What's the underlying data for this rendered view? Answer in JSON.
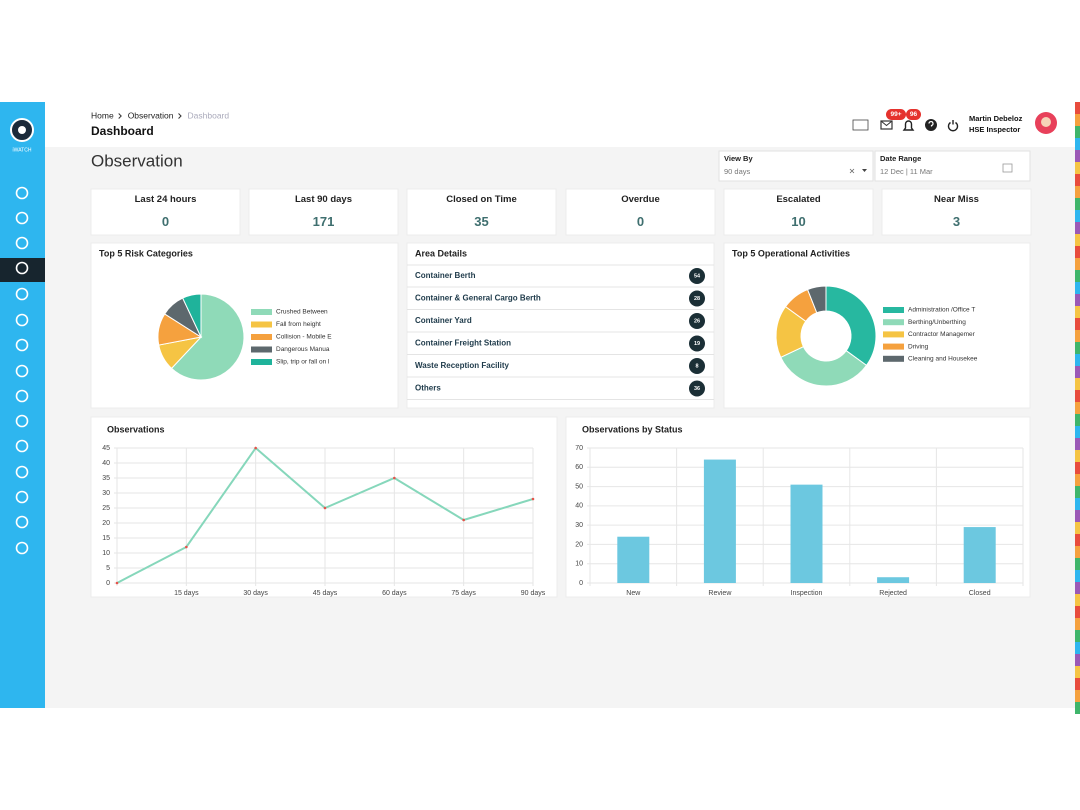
{
  "sidebar": {
    "logo_text": "iWATCH"
  },
  "header": {
    "breadcrumb": [
      "Home",
      "Observation",
      "Dashboard"
    ],
    "title": "Dashboard",
    "mail_badge": "99+",
    "bell_badge": "96",
    "user_name": "Martin Debeloz",
    "user_role": "HSE Inspector"
  },
  "page_title": "Observation",
  "filters": {
    "view_by": {
      "label": "View By",
      "value": "90 days"
    },
    "date_range": {
      "label": "Date Range",
      "value": "12 Dec | 11 Mar"
    }
  },
  "kpis": [
    {
      "label": "Last 24 hours",
      "value": 0
    },
    {
      "label": "Last 90 days",
      "value": 171
    },
    {
      "label": "Closed on Time",
      "value": 35
    },
    {
      "label": "Overdue",
      "value": 0
    },
    {
      "label": "Escalated",
      "value": 10
    },
    {
      "label": "Near Miss",
      "value": 3
    }
  ],
  "area_details": {
    "title": "Area Details",
    "rows": [
      {
        "name": "Container Berth",
        "count": 54
      },
      {
        "name": "Container & General Cargo Berth",
        "count": 28
      },
      {
        "name": "Container Yard",
        "count": 26
      },
      {
        "name": "Container Freight Station",
        "count": 19
      },
      {
        "name": "Waste Reception Facility",
        "count": 8
      },
      {
        "name": "Others",
        "count": 36
      }
    ]
  },
  "chart_data": [
    {
      "type": "pie",
      "title": "Top 5 Risk Categories",
      "categories": [
        "Crushed Between",
        "Fall from height",
        "Collision - Mobile E",
        "Dangerous Manua",
        "Slip, trip or fall on l"
      ],
      "values": [
        62,
        10,
        12,
        9,
        7
      ],
      "colors": [
        "#8fdab8",
        "#f5c444",
        "#f5a13e",
        "#5d686d",
        "#1fb39b"
      ]
    },
    {
      "type": "doughnut",
      "title": "Top 5 Operational Activities",
      "categories": [
        "Administration /Office T",
        "Berthing/Unberthing",
        "Contractor Managemer",
        "Driving",
        "Cleaning and Housekee"
      ],
      "values": [
        35,
        33,
        17,
        9,
        6
      ],
      "colors": [
        "#27b8a0",
        "#8fdab8",
        "#f5c444",
        "#f5a13e",
        "#5d686d"
      ]
    },
    {
      "type": "line",
      "title": "Observations",
      "categories": [
        null,
        "15 days",
        "30 days",
        "45 days",
        "60 days",
        "75 days",
        "90 days"
      ],
      "values": [
        0,
        12,
        45,
        25,
        35,
        21,
        28
      ],
      "color": "#86d7bb",
      "point_color": "#e5534b",
      "ylim": [
        0,
        45
      ],
      "yticks": [
        0,
        5,
        10,
        15,
        20,
        25,
        30,
        35,
        40,
        45
      ],
      "grid": true
    },
    {
      "type": "bar",
      "title": "Observations by Status",
      "categories": [
        "New",
        "Review",
        "Inspection",
        "Rejected",
        "Closed"
      ],
      "values": [
        24,
        64,
        51,
        3,
        29
      ],
      "color": "#6cc8e0",
      "ylim": [
        0,
        70
      ],
      "yticks": [
        0,
        10,
        20,
        30,
        40,
        50,
        60,
        70
      ],
      "grid": true
    }
  ]
}
